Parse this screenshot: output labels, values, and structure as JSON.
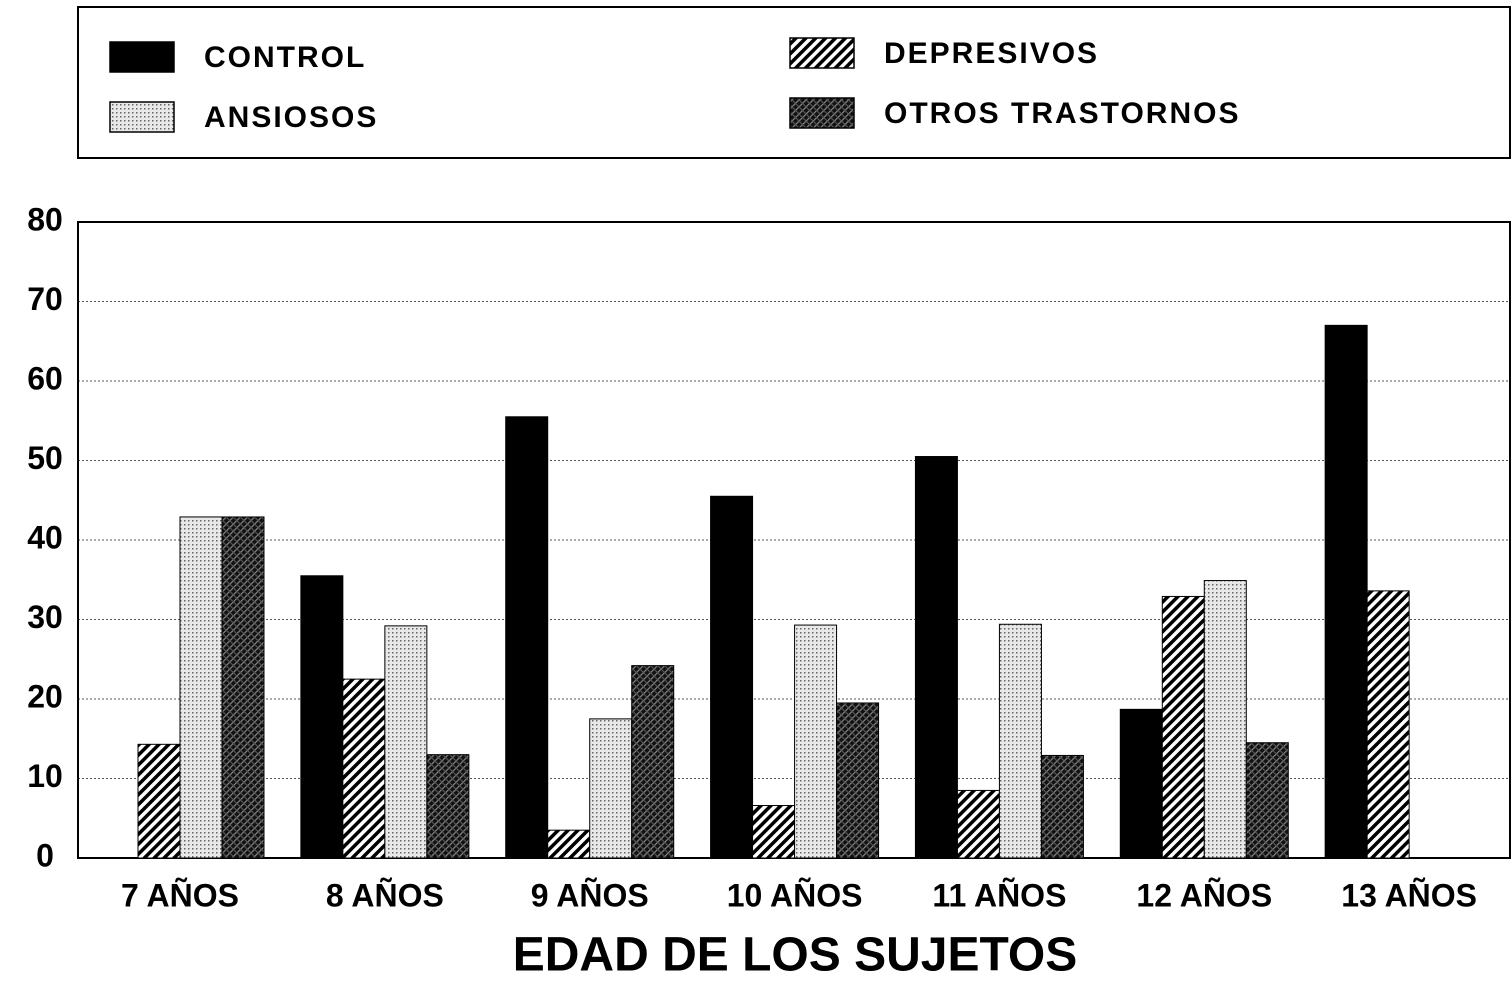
{
  "chart_data": {
    "type": "bar",
    "xlabel": "EDAD DE LOS SUJETOS",
    "categories": [
      "7 AÑOS",
      "8 AÑOS",
      "9 AÑOS",
      "10 AÑOS",
      "11 AÑOS",
      "12 AÑOS",
      "13 AÑOS"
    ],
    "series": [
      {
        "name": "CONTROL",
        "color": "#000000",
        "pattern": "solid",
        "values": [
          0,
          35.5,
          55.5,
          45.5,
          50.5,
          18.7,
          67
        ]
      },
      {
        "name": "DEPRESIVOS",
        "color": "#000000",
        "pattern": "hatch",
        "values": [
          14.3,
          22.5,
          3.5,
          6.6,
          8.5,
          32.9,
          33.6
        ]
      },
      {
        "name": "ANSIOSOS",
        "color": "#bbbbbb",
        "pattern": "dots",
        "values": [
          42.9,
          29.2,
          17.5,
          29.3,
          29.4,
          34.9,
          0
        ]
      },
      {
        "name": "OTROS TRASTORNOS",
        "color": "#222222",
        "pattern": "crosshatch",
        "values": [
          42.9,
          13,
          24.2,
          19.5,
          12.9,
          14.5,
          0
        ]
      }
    ],
    "ylim": [
      0,
      80
    ],
    "yticks": [
      0,
      10,
      20,
      30,
      40,
      50,
      60,
      70,
      80
    ],
    "grid": true
  }
}
